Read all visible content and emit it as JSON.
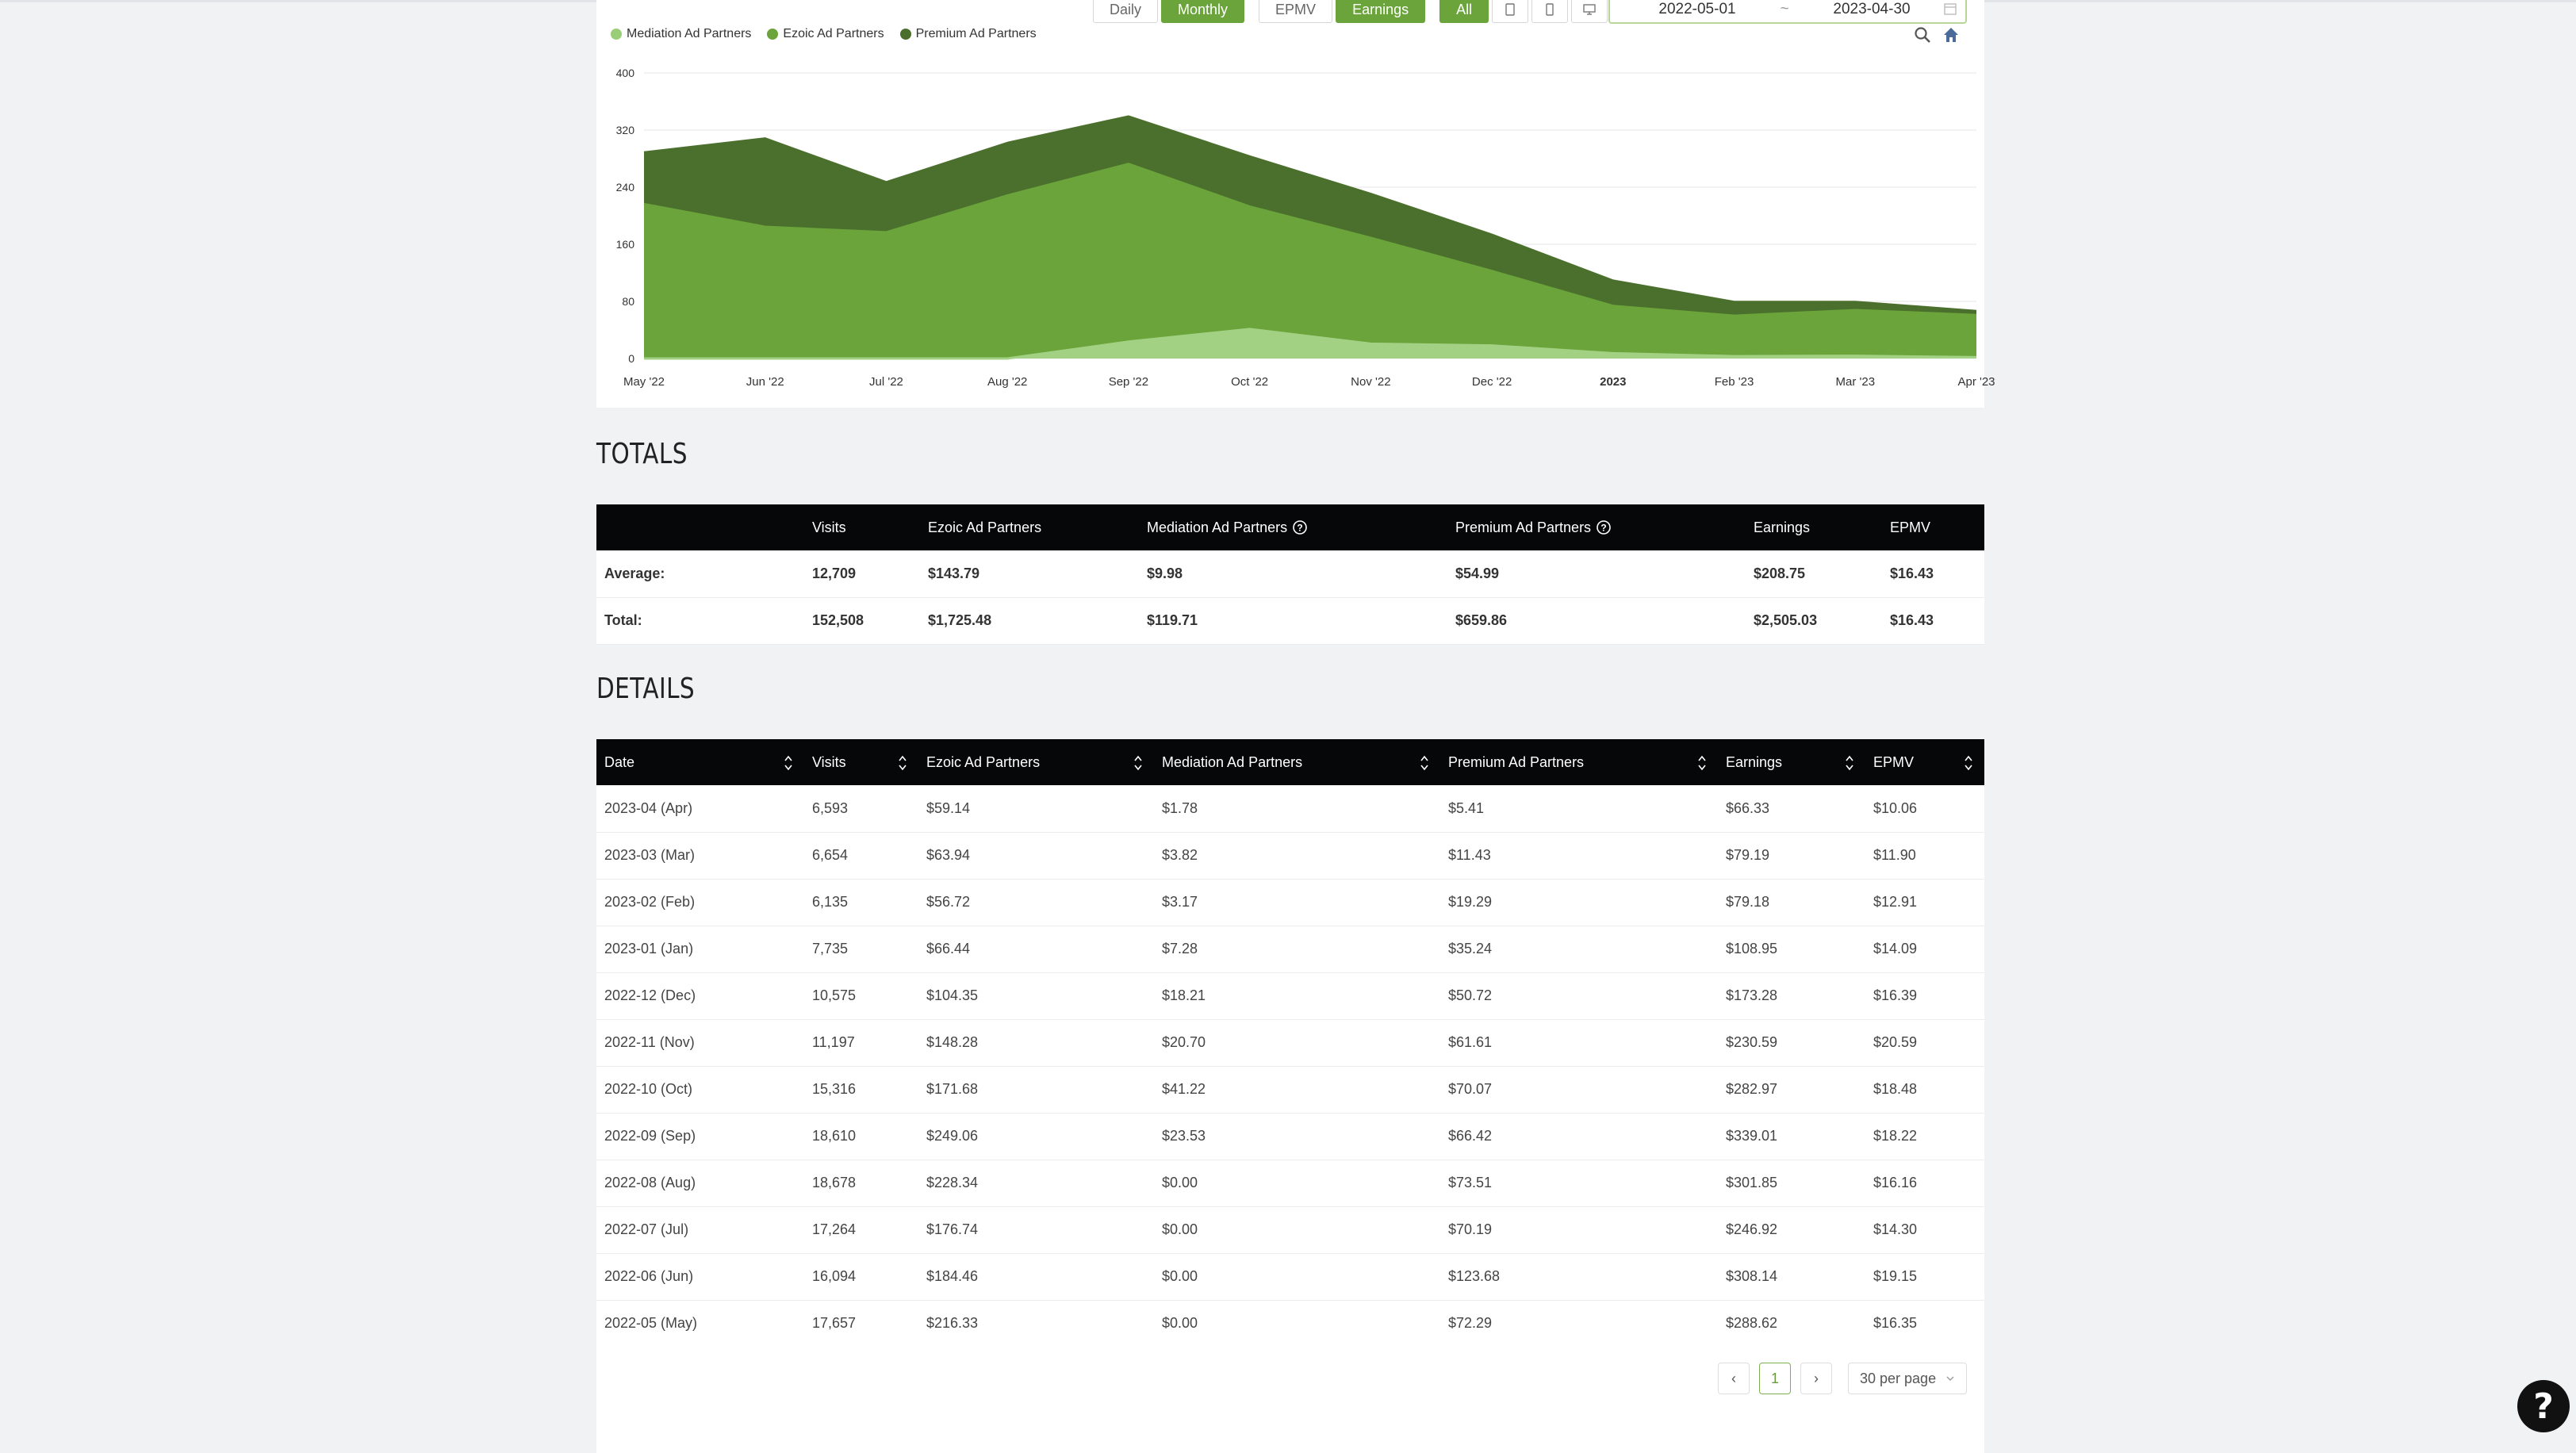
{
  "toolbar": {
    "daily_label": "Daily",
    "monthly_label": "Monthly",
    "epmv_label": "EPMV",
    "earnings_label": "Earnings",
    "all_label": "All",
    "device_icons": [
      "tablet-icon",
      "mobile-icon",
      "desktop-icon"
    ]
  },
  "date_range": {
    "start": "2022-05-01",
    "separator": "~",
    "end": "2023-04-30"
  },
  "legend": [
    {
      "label": "Mediation Ad Partners",
      "color": "#9acd78"
    },
    {
      "label": "Ezoic Ad Partners",
      "color": "#6aa43b"
    },
    {
      "label": "Premium Ad Partners",
      "color": "#4a6e2b"
    }
  ],
  "chart_data": {
    "type": "area",
    "stacked": true,
    "x": [
      "May '22",
      "Jun '22",
      "Jul '22",
      "Aug '22",
      "Sep '22",
      "Oct '22",
      "Nov '22",
      "Dec '22",
      "2023",
      "Feb '23",
      "Mar '23",
      "Apr '23"
    ],
    "series": [
      {
        "name": "Mediation Ad Partners",
        "color": "#a3d184",
        "values": [
          0.0,
          0.0,
          0.0,
          0.0,
          23.53,
          41.22,
          20.7,
          18.21,
          7.28,
          3.17,
          3.82,
          1.78
        ]
      },
      {
        "name": "Ezoic Ad Partners",
        "color": "#6aa43b",
        "values": [
          216.33,
          184.46,
          176.74,
          228.34,
          249.06,
          171.68,
          148.28,
          104.35,
          66.44,
          56.72,
          63.94,
          59.14
        ]
      },
      {
        "name": "Premium Ad Partners",
        "color": "#4b6f2c",
        "values": [
          72.29,
          123.68,
          70.19,
          73.51,
          66.42,
          70.07,
          61.61,
          50.72,
          35.24,
          19.29,
          11.43,
          5.41
        ]
      }
    ],
    "yticks": [
      0,
      80,
      160,
      240,
      320,
      400
    ],
    "ylim": [
      0,
      400
    ],
    "grid": true,
    "legend_position": "top-left"
  },
  "totals": {
    "title": "TOTALS",
    "headers": [
      "",
      "Visits",
      "Ezoic Ad Partners",
      "Mediation Ad Partners",
      "Premium Ad Partners",
      "Earnings",
      "EPMV"
    ],
    "rows": [
      [
        "Average:",
        "12,709",
        "$143.79",
        "$9.98",
        "$54.99",
        "$208.75",
        "$16.43"
      ],
      [
        "Total:",
        "152,508",
        "$1,725.48",
        "$119.71",
        "$659.86",
        "$2,505.03",
        "$16.43"
      ]
    ]
  },
  "details": {
    "title": "DETAILS",
    "headers": [
      "Date",
      "Visits",
      "Ezoic Ad Partners",
      "Mediation Ad Partners",
      "Premium Ad Partners",
      "Earnings",
      "EPMV"
    ],
    "rows": [
      [
        "2023-04 (Apr)",
        "6,593",
        "$59.14",
        "$1.78",
        "$5.41",
        "$66.33",
        "$10.06"
      ],
      [
        "2023-03 (Mar)",
        "6,654",
        "$63.94",
        "$3.82",
        "$11.43",
        "$79.19",
        "$11.90"
      ],
      [
        "2023-02 (Feb)",
        "6,135",
        "$56.72",
        "$3.17",
        "$19.29",
        "$79.18",
        "$12.91"
      ],
      [
        "2023-01 (Jan)",
        "7,735",
        "$66.44",
        "$7.28",
        "$35.24",
        "$108.95",
        "$14.09"
      ],
      [
        "2022-12 (Dec)",
        "10,575",
        "$104.35",
        "$18.21",
        "$50.72",
        "$173.28",
        "$16.39"
      ],
      [
        "2022-11 (Nov)",
        "11,197",
        "$148.28",
        "$20.70",
        "$61.61",
        "$230.59",
        "$20.59"
      ],
      [
        "2022-10 (Oct)",
        "15,316",
        "$171.68",
        "$41.22",
        "$70.07",
        "$282.97",
        "$18.48"
      ],
      [
        "2022-09 (Sep)",
        "18,610",
        "$249.06",
        "$23.53",
        "$66.42",
        "$339.01",
        "$18.22"
      ],
      [
        "2022-08 (Aug)",
        "18,678",
        "$228.34",
        "$0.00",
        "$73.51",
        "$301.85",
        "$16.16"
      ],
      [
        "2022-07 (Jul)",
        "17,264",
        "$176.74",
        "$0.00",
        "$70.19",
        "$246.92",
        "$14.30"
      ],
      [
        "2022-06 (Jun)",
        "16,094",
        "$184.46",
        "$0.00",
        "$123.68",
        "$308.14",
        "$19.15"
      ],
      [
        "2022-05 (May)",
        "17,657",
        "$216.33",
        "$0.00",
        "$72.29",
        "$288.62",
        "$16.35"
      ]
    ]
  },
  "pagination": {
    "prev": "‹",
    "current": "1",
    "next": "›",
    "per_page": "30 per page"
  },
  "help_button": "?"
}
